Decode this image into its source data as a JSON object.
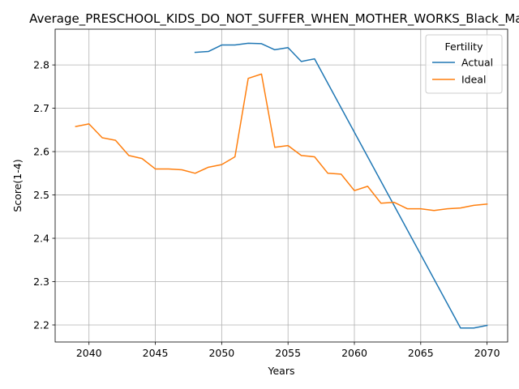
{
  "chart_data": {
    "type": "line",
    "title": "Average_PRESCHOOL_KIDS_DO_NOT_SUFFER_WHEN_MOTHER_WORKS_Black_Male",
    "xlabel": "Years",
    "ylabel": "Score(1-4)",
    "xlim": [
      2037.45,
      2071.55
    ],
    "ylim": [
      2.1607,
      2.8825
    ],
    "xticks": [
      2040,
      2045,
      2050,
      2055,
      2060,
      2065,
      2070
    ],
    "yticks": [
      2.2,
      2.3,
      2.4,
      2.5,
      2.6,
      2.7,
      2.8
    ],
    "ytick_labels": [
      "2.2",
      "2.3",
      "2.4",
      "2.5",
      "2.6",
      "2.7",
      "2.8"
    ],
    "grid": true,
    "legend": {
      "title": "Fertility",
      "placement": "top-right"
    },
    "series": [
      {
        "name": "Actual",
        "color": "#1f77b4",
        "x": [
          2048,
          2049,
          2050,
          2051,
          2052,
          2053,
          2054,
          2055,
          2056,
          2057,
          2068,
          2069,
          2070
        ],
        "y": [
          2.829,
          2.831,
          2.846,
          2.846,
          2.85,
          2.849,
          2.835,
          2.84,
          2.808,
          2.814,
          2.193,
          2.193,
          2.199
        ]
      },
      {
        "name": "Ideal",
        "color": "#ff7f0e",
        "x": [
          2039,
          2040,
          2041,
          2042,
          2043,
          2044,
          2045,
          2046,
          2047,
          2048,
          2049,
          2050,
          2051,
          2052,
          2053,
          2054,
          2055,
          2056,
          2057,
          2058,
          2059,
          2060,
          2061,
          2062,
          2063,
          2064,
          2065,
          2066,
          2067,
          2068,
          2069,
          2070
        ],
        "y": [
          2.658,
          2.664,
          2.632,
          2.626,
          2.591,
          2.584,
          2.56,
          2.56,
          2.558,
          2.55,
          2.564,
          2.57,
          2.588,
          2.769,
          2.779,
          2.61,
          2.614,
          2.591,
          2.588,
          2.55,
          2.548,
          2.51,
          2.52,
          2.481,
          2.483,
          2.468,
          2.468,
          2.464,
          2.468,
          2.47,
          2.476,
          2.479
        ]
      }
    ]
  }
}
